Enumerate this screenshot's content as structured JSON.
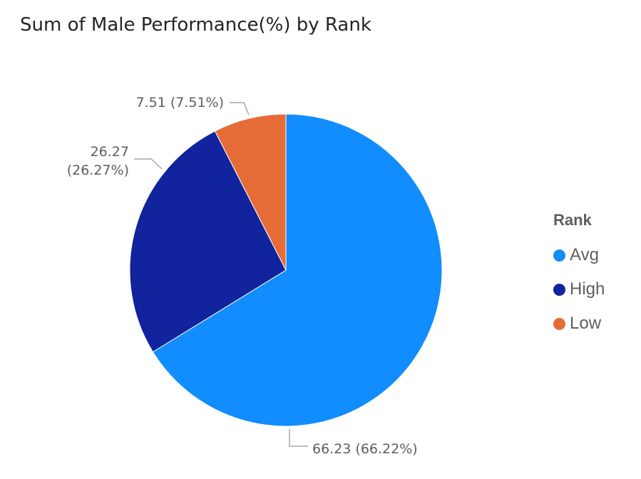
{
  "chart_data": {
    "type": "pie",
    "title": "Sum of Male Performance(%) by Rank",
    "legend_title": "Rank",
    "legend_position": "right",
    "categories": [
      "Avg",
      "High",
      "Low"
    ],
    "values": [
      66.23,
      26.27,
      7.51
    ],
    "percent_labels": [
      "66.22%",
      "26.27%",
      "7.51%"
    ],
    "data_labels": [
      "66.23 (66.22%)",
      "26.27 (26.27%)",
      "7.51 (7.51%)"
    ],
    "colors": [
      "#118DFF",
      "#12239E",
      "#E66C37"
    ]
  }
}
